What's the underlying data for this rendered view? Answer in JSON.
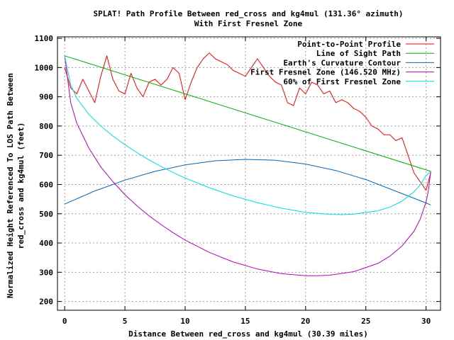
{
  "chart_data": {
    "type": "line",
    "title": "SPLAT! Path Profile Between red_cross and kg4mul (131.36° azimuth)",
    "subtitle": "With First Fresnel Zone",
    "xlabel": "Distance Between red_cross and kg4mul (30.39 miles)",
    "ylabel_line1": "Normalized Height Referenced To LOS Path Between",
    "ylabel_line2": "red_cross and kg4mul (feet)",
    "xlim": [
      -0.6,
      31.2
    ],
    "ylim": [
      170,
      1105
    ],
    "xticks": [
      0,
      5,
      10,
      15,
      20,
      25,
      30
    ],
    "yticks": [
      200,
      300,
      400,
      500,
      600,
      700,
      800,
      900,
      1000,
      1100
    ],
    "grid": true,
    "legend_position": "top-right",
    "series": [
      {
        "name": "Point-to-Point Profile",
        "color": "#ff0000",
        "x": [
          0,
          0.5,
          1.0,
          1.5,
          2.0,
          2.5,
          3.0,
          3.5,
          4.0,
          4.5,
          5.0,
          5.5,
          6.0,
          6.5,
          7.0,
          7.5,
          8.0,
          8.5,
          9.0,
          9.5,
          10.0,
          10.5,
          11.0,
          11.5,
          12.0,
          12.5,
          13.0,
          13.5,
          14.0,
          14.5,
          15.0,
          15.5,
          16.0,
          16.5,
          17.0,
          17.5,
          18.0,
          18.5,
          19.0,
          19.5,
          20.0,
          20.5,
          21.0,
          21.5,
          22.0,
          22.5,
          23.0,
          23.5,
          24.0,
          24.5,
          25.0,
          25.5,
          26.0,
          26.5,
          27.0,
          27.5,
          28.0,
          28.5,
          29.0,
          29.5,
          30.0,
          30.39
        ],
        "y": [
          1000,
          930,
          910,
          960,
          920,
          880,
          970,
          1040,
          960,
          920,
          910,
          980,
          930,
          900,
          950,
          960,
          940,
          960,
          1000,
          980,
          890,
          950,
          1000,
          1030,
          1050,
          1030,
          1020,
          1010,
          990,
          980,
          970,
          1000,
          1030,
          1000,
          970,
          950,
          940,
          880,
          870,
          930,
          910,
          950,
          940,
          910,
          920,
          880,
          890,
          880,
          860,
          850,
          830,
          800,
          790,
          770,
          770,
          750,
          760,
          700,
          640,
          610,
          580,
          640
        ]
      },
      {
        "name": "Line of Sight Path",
        "color": "#00aa00",
        "x": [
          0,
          30.39
        ],
        "y": [
          1040,
          645
        ]
      },
      {
        "name": "Earth's Curvature Contour",
        "color": "#0066bb",
        "x": [
          0,
          2.5,
          5,
          7.5,
          10,
          12.5,
          15,
          17.5,
          20,
          22.5,
          25,
          27.5,
          30,
          30.39
        ],
        "y": [
          533,
          578,
          615,
          645,
          667,
          681,
          686,
          683,
          670,
          648,
          617,
          577,
          537,
          530
        ]
      },
      {
        "name": "First Fresnel Zone (146.520 MHz)",
        "color": "#bb00bb",
        "x": [
          0,
          0.5,
          1,
          2,
          3,
          4,
          5,
          6,
          7,
          8,
          9,
          10,
          12,
          14,
          16,
          18,
          20,
          21,
          22,
          24,
          26,
          27,
          28,
          29,
          29.5,
          30,
          30.2,
          30.39
        ],
        "y": [
          1040,
          880,
          810,
          725,
          660,
          610,
          565,
          527,
          493,
          463,
          435,
          410,
          368,
          335,
          311,
          295,
          288,
          288,
          290,
          302,
          330,
          355,
          390,
          440,
          480,
          540,
          580,
          645
        ]
      },
      {
        "name": "60% of First Fresnel Zone",
        "color": "#00dddd",
        "x": [
          0,
          0.5,
          1,
          2,
          3,
          4,
          5,
          6,
          7,
          8,
          9,
          10,
          12,
          14,
          16,
          18,
          20,
          22,
          23,
          24,
          26,
          27,
          28,
          29,
          29.5,
          30,
          30.39
        ],
        "y": [
          1040,
          940,
          895,
          840,
          800,
          766,
          736,
          709,
          684,
          662,
          641,
          622,
          589,
          561,
          538,
          519,
          505,
          498,
          497,
          499,
          510,
          523,
          543,
          575,
          598,
          630,
          645
        ]
      }
    ]
  }
}
